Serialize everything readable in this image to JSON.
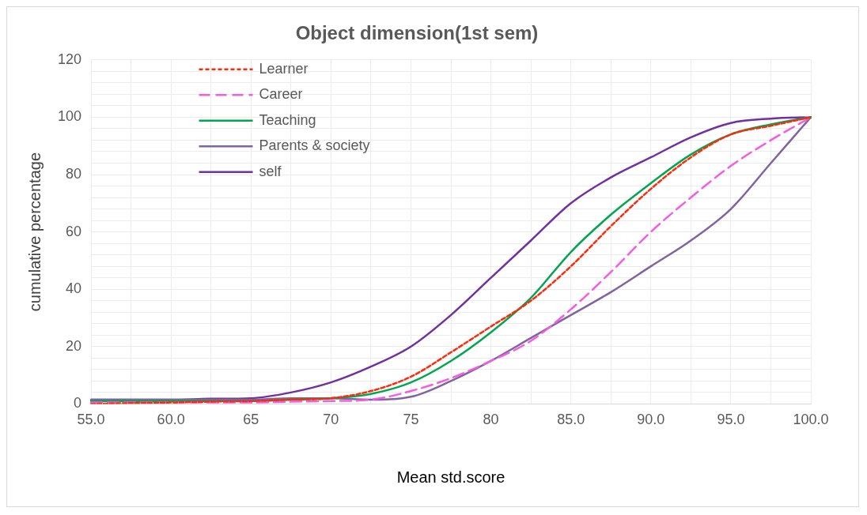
{
  "chart_data": {
    "type": "line",
    "title": "Object dimension(1st sem)",
    "xlabel": "Mean std.score",
    "ylabel": "cumulative percentage",
    "categories": [
      "55.0",
      null,
      "60.0",
      null,
      "65",
      null,
      "70",
      null,
      "75",
      null,
      "80",
      null,
      "85.0",
      null,
      "90.0",
      null,
      "95.0",
      null,
      "100.0"
    ],
    "series": [
      {
        "name": "Learner",
        "color": "#ff2a0a",
        "line_style": "dotted",
        "values": [
          0,
          0.3,
          0.5,
          0.8,
          1,
          1.5,
          2,
          4.5,
          9.5,
          18,
          27,
          36,
          48,
          62,
          75,
          86,
          94,
          97,
          100
        ]
      },
      {
        "name": "Career",
        "color": "#f45de0",
        "line_style": "dashed",
        "values": [
          0.5,
          0.5,
          0.5,
          0.5,
          0.5,
          0.8,
          1,
          1.5,
          4.5,
          9,
          15,
          22,
          33,
          46,
          60,
          72,
          83,
          92,
          100
        ]
      },
      {
        "name": "Teaching",
        "color": "#00a650",
        "line_style": "solid",
        "values": [
          1,
          1,
          1,
          1,
          1,
          1.5,
          2,
          3.5,
          7.5,
          15,
          25,
          37,
          53,
          66,
          77,
          87,
          94,
          97.5,
          100
        ]
      },
      {
        "name": "Parents & society",
        "color": "#8064a2",
        "line_style": "solid",
        "values": [
          1.5,
          1.5,
          1.5,
          1.5,
          1.5,
          2,
          2,
          1.5,
          2.5,
          8,
          15,
          23,
          31,
          39,
          48,
          57,
          68,
          84,
          100
        ]
      },
      {
        "name": "self",
        "color": "#7030a0",
        "line_style": "solid",
        "values": [
          1.5,
          1.5,
          1.5,
          1.8,
          2,
          4,
          7.5,
          13,
          20,
          31,
          44,
          57,
          70,
          79,
          86,
          93,
          98,
          99.5,
          100
        ]
      }
    ],
    "ylim": [
      0,
      120
    ],
    "yticks": [
      0,
      {
        "value": 4,
        "label": null
      },
      {
        "value": 8,
        "label": null
      },
      {
        "value": 12,
        "label": null
      },
      {
        "value": 16,
        "label": null
      },
      20,
      {
        "value": 24,
        "label": null
      },
      {
        "value": 28,
        "label": null
      },
      {
        "value": 32,
        "label": null
      },
      {
        "value": 36,
        "label": null
      },
      40,
      {
        "value": 44,
        "label": null
      },
      {
        "value": 48,
        "label": null
      },
      {
        "value": 52,
        "label": null
      },
      {
        "value": 56,
        "label": null
      },
      60,
      {
        "value": 64,
        "label": null
      },
      {
        "value": 68,
        "label": null
      },
      {
        "value": 72,
        "label": null
      },
      {
        "value": 76,
        "label": null
      },
      80,
      {
        "value": 84,
        "label": null
      },
      {
        "value": 88,
        "label": null
      },
      {
        "value": 92,
        "label": null
      },
      {
        "value": 96,
        "label": null
      },
      100,
      {
        "value": 104,
        "label": null
      },
      {
        "value": 108,
        "label": null
      },
      {
        "value": 112,
        "label": null
      },
      {
        "value": 116,
        "label": null
      },
      120
    ],
    "grid": true,
    "legend": "top left",
    "marker": "none"
  }
}
